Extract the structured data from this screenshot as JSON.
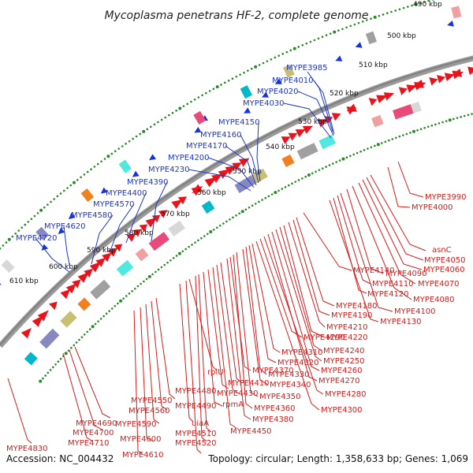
{
  "title": "Mycoplasma penetrans HF-2, complete genome",
  "footer": {
    "accession": "Accession: NC_004432",
    "summary": "Topology: circular; Length: 1,358,633 bp; Genes: 1,069"
  },
  "ticks": [
    "490 kbp",
    "500 kbp",
    "510 kbp",
    "520 kbp",
    "530 kbp",
    "540 kbp",
    "550 kbp",
    "560 kbp",
    "570 kbp",
    "580 kbp",
    "590 kbp",
    "600 kbp",
    "610 kbp"
  ],
  "blue_labels": [
    "MYPE3985",
    "MYPE4010",
    "MYPE4020",
    "MYPE4030",
    "MYPE4150",
    "MYPE4160",
    "MYPE4170",
    "MYPE4200",
    "MYPE4230",
    "MYPE4390",
    "MYPE4400",
    "MYPE4570",
    "MYPE4580",
    "MYPE4620",
    "MYPE4720"
  ],
  "red_labels": [
    "MYPE3990",
    "MYPE4000",
    "asnC",
    "MYPE4050",
    "MYPE4060",
    "MYPE4070",
    "MYPE4080",
    "MYPE4090",
    "MYPE4100",
    "MYPE4110",
    "MYPE4120",
    "MYPE4130",
    "MYPE4140",
    "MYPE4180",
    "MYPE4190",
    "MYPE4210",
    "MYPE4220",
    "MYPE4240",
    "MYPE4250",
    "MYPE4260",
    "MYPE4270",
    "MYPE4280",
    "MYPE4290",
    "MYPE4300",
    "MYPE4310",
    "MYPE4320",
    "MYPE4330",
    "MYPE4340",
    "MYPE4350",
    "MYPE4360",
    "MYPE4370",
    "MYPE4380",
    "MYPE4410",
    "MYPE4430",
    "MYPE4450",
    "MYPE4480",
    "MYPE4490",
    "MYPE4510",
    "MYPE4520",
    "MYPE4550",
    "MYPE4560",
    "MYPE4590",
    "MYPE4600",
    "MYPE4610",
    "MYPE4690",
    "MYPE4700",
    "MYPE4710",
    "MYPE4830",
    "rplU",
    "rpmA",
    "uiaA"
  ],
  "colors": {
    "forward_gene": "#e8141c",
    "reverse_gene": "#1133e0",
    "backbone": "#8a8a8a",
    "tick_dots": "#2a8a2a",
    "blue_label": "#1f35c8",
    "red_label": "#d81a1a"
  }
}
